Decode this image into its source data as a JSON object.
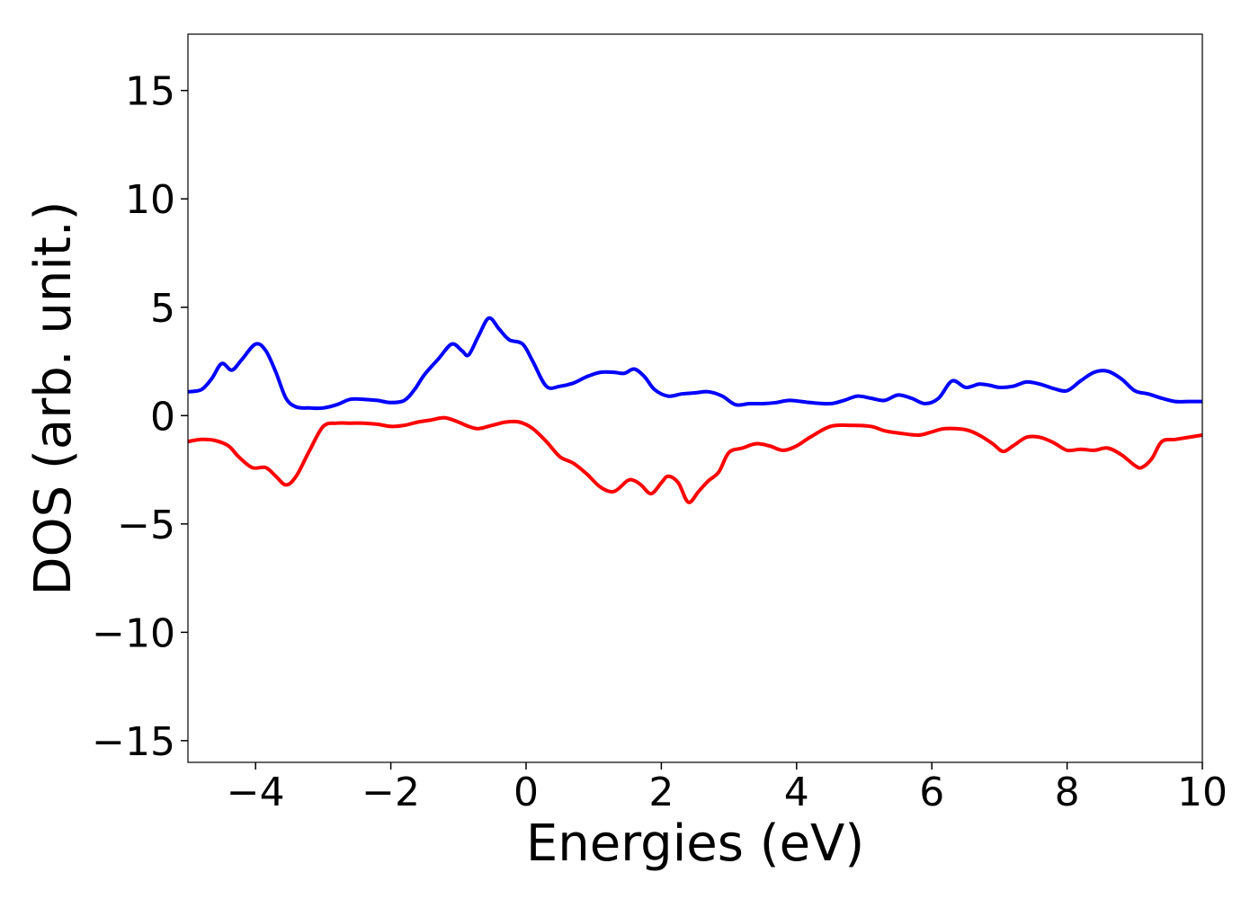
{
  "chart_data": {
    "type": "line",
    "title": "",
    "xlabel": "Energies (eV)",
    "ylabel": "DOS (arb. unit.)",
    "xlim": [
      -5,
      10
    ],
    "ylim": [
      -16,
      17.6
    ],
    "xticks": [
      -4,
      -2,
      0,
      2,
      4,
      6,
      8,
      10
    ],
    "xtick_labels": [
      "−4",
      "−2",
      "0",
      "2",
      "4",
      "6",
      "8",
      "10"
    ],
    "yticks": [
      -15,
      -10,
      -5,
      0,
      5,
      10,
      15
    ],
    "ytick_labels": [
      "−15",
      "−10",
      "−5",
      "0",
      "5",
      "10",
      "15"
    ],
    "grid": false,
    "legend": "none",
    "series": [
      {
        "color": "#0000ff",
        "x": [
          -5.0,
          -4.8,
          -4.65,
          -4.5,
          -4.35,
          -4.2,
          -4.0,
          -3.85,
          -3.7,
          -3.55,
          -3.4,
          -3.2,
          -3.0,
          -2.8,
          -2.6,
          -2.4,
          -2.2,
          -2.0,
          -1.8,
          -1.65,
          -1.5,
          -1.3,
          -1.1,
          -0.95,
          -0.85,
          -0.7,
          -0.55,
          -0.4,
          -0.25,
          -0.05,
          0.1,
          0.3,
          0.5,
          0.7,
          0.9,
          1.1,
          1.3,
          1.45,
          1.6,
          1.75,
          1.9,
          2.1,
          2.3,
          2.5,
          2.7,
          2.9,
          3.1,
          3.3,
          3.5,
          3.7,
          3.9,
          4.2,
          4.5,
          4.7,
          4.9,
          5.1,
          5.3,
          5.5,
          5.7,
          5.9,
          6.1,
          6.3,
          6.5,
          6.7,
          6.85,
          7.0,
          7.2,
          7.4,
          7.6,
          7.8,
          8.0,
          8.2,
          8.4,
          8.6,
          8.8,
          9.0,
          9.2,
          9.4,
          9.6,
          9.8,
          10.0
        ],
        "y": [
          1.1,
          1.2,
          1.7,
          2.4,
          2.1,
          2.6,
          3.3,
          3.0,
          2.0,
          0.8,
          0.4,
          0.35,
          0.35,
          0.5,
          0.75,
          0.75,
          0.7,
          0.6,
          0.7,
          1.2,
          1.9,
          2.6,
          3.3,
          3.0,
          2.8,
          3.7,
          4.5,
          4.0,
          3.5,
          3.3,
          2.5,
          1.35,
          1.35,
          1.5,
          1.8,
          2.0,
          2.0,
          1.95,
          2.15,
          1.8,
          1.2,
          0.9,
          1.0,
          1.05,
          1.1,
          0.9,
          0.5,
          0.55,
          0.55,
          0.6,
          0.7,
          0.6,
          0.55,
          0.7,
          0.9,
          0.8,
          0.7,
          0.95,
          0.8,
          0.55,
          0.8,
          1.6,
          1.3,
          1.45,
          1.4,
          1.3,
          1.35,
          1.55,
          1.45,
          1.25,
          1.15,
          1.6,
          2.0,
          2.05,
          1.7,
          1.15,
          1.0,
          0.8,
          0.65,
          0.65,
          0.65
        ]
      },
      {
        "color": "#ff0000",
        "x": [
          -5.0,
          -4.8,
          -4.6,
          -4.4,
          -4.25,
          -4.05,
          -3.85,
          -3.7,
          -3.55,
          -3.4,
          -3.2,
          -3.0,
          -2.8,
          -2.6,
          -2.4,
          -2.2,
          -2.0,
          -1.8,
          -1.6,
          -1.4,
          -1.2,
          -1.0,
          -0.85,
          -0.7,
          -0.5,
          -0.3,
          -0.1,
          0.1,
          0.3,
          0.5,
          0.7,
          0.9,
          1.1,
          1.3,
          1.5,
          1.6,
          1.7,
          1.85,
          2.0,
          2.1,
          2.25,
          2.4,
          2.55,
          2.7,
          2.85,
          3.0,
          3.2,
          3.4,
          3.6,
          3.8,
          4.0,
          4.2,
          4.5,
          4.8,
          5.1,
          5.3,
          5.5,
          5.8,
          6.0,
          6.2,
          6.5,
          6.7,
          6.9,
          7.05,
          7.2,
          7.4,
          7.6,
          7.8,
          8.0,
          8.2,
          8.4,
          8.6,
          8.8,
          9.0,
          9.1,
          9.25,
          9.4,
          9.6,
          9.8,
          10.0
        ],
        "y": [
          -1.2,
          -1.1,
          -1.15,
          -1.4,
          -1.9,
          -2.4,
          -2.4,
          -2.8,
          -3.2,
          -2.8,
          -1.6,
          -0.5,
          -0.35,
          -0.35,
          -0.35,
          -0.4,
          -0.5,
          -0.45,
          -0.3,
          -0.2,
          -0.1,
          -0.3,
          -0.5,
          -0.6,
          -0.45,
          -0.3,
          -0.3,
          -0.6,
          -1.2,
          -1.9,
          -2.2,
          -2.7,
          -3.3,
          -3.5,
          -3.0,
          -3.0,
          -3.2,
          -3.6,
          -3.1,
          -2.8,
          -3.1,
          -4.0,
          -3.5,
          -3.0,
          -2.6,
          -1.7,
          -1.5,
          -1.3,
          -1.4,
          -1.6,
          -1.4,
          -1.0,
          -0.5,
          -0.45,
          -0.5,
          -0.7,
          -0.8,
          -0.9,
          -0.75,
          -0.6,
          -0.65,
          -0.9,
          -1.3,
          -1.65,
          -1.4,
          -1.0,
          -1.0,
          -1.25,
          -1.6,
          -1.55,
          -1.6,
          -1.5,
          -1.8,
          -2.3,
          -2.4,
          -2.0,
          -1.2,
          -1.1,
          -1.0,
          -0.9
        ]
      }
    ]
  }
}
